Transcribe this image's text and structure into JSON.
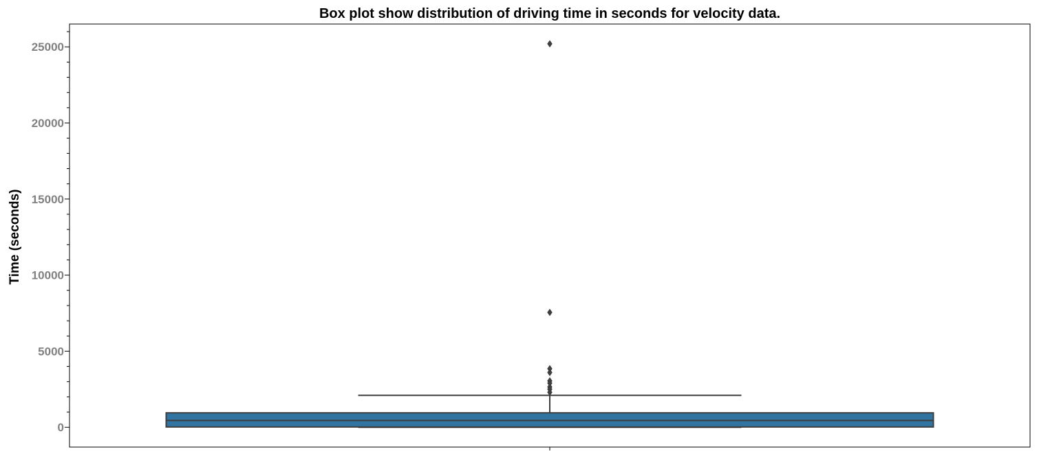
{
  "chart_data": {
    "type": "box",
    "title": "Box plot show distribution of driving time in seconds for velocity data.",
    "xlabel": "",
    "ylabel": "Time (seconds)",
    "ylim": [
      -1300,
      26500
    ],
    "y_ticks": [
      0,
      5000,
      10000,
      15000,
      20000,
      25000
    ],
    "y_tick_labels": [
      "0",
      "5000",
      "10000",
      "15000",
      "20000",
      "25000"
    ],
    "grid": false,
    "box": {
      "min": 0,
      "q1": 20,
      "median": 450,
      "q3": 950,
      "max": 2100,
      "whisker_caps": "wide"
    },
    "outliers": [
      25200,
      7550,
      3850,
      3600,
      3050,
      2900,
      2650,
      2500,
      2300
    ],
    "colors": {
      "box_fill": "#3274a1",
      "line": "#3f3f3f",
      "tick_label": "#808080",
      "axes": "#000000"
    }
  }
}
